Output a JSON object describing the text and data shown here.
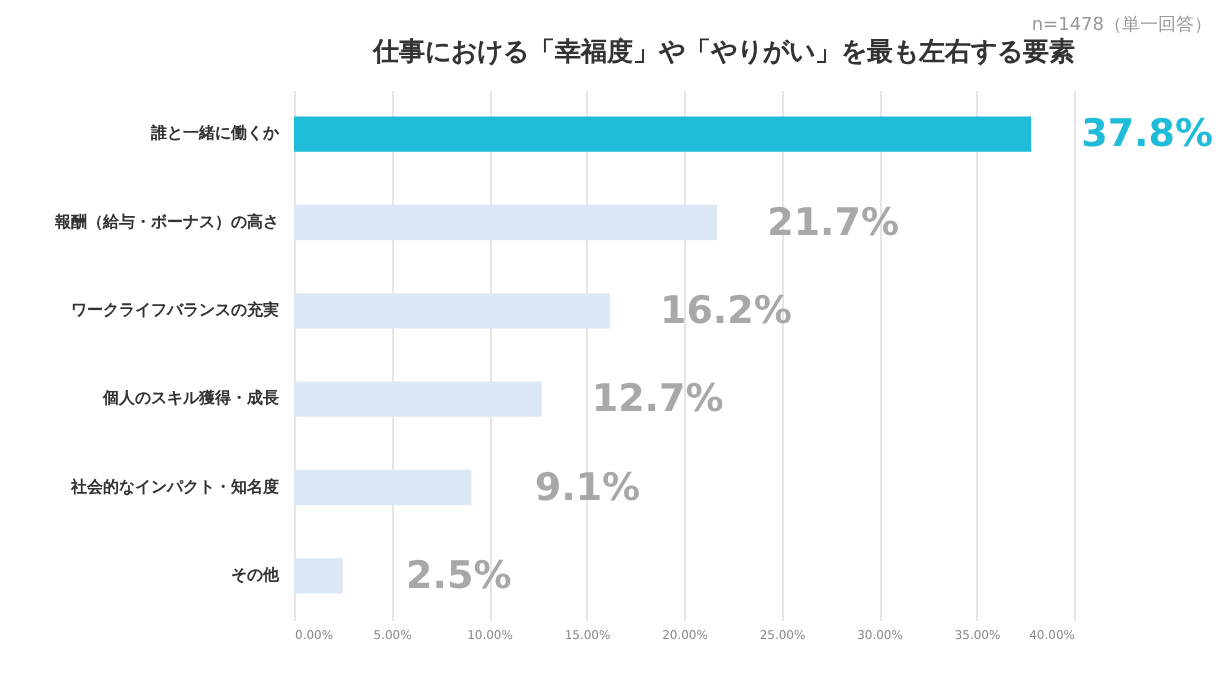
{
  "chart_data": {
    "type": "bar",
    "orientation": "horizontal",
    "title": "仕事における「幸福度」や「やりがい」を最も左右する要素",
    "subtitle": "n=1478（単一回答）",
    "categories": [
      "誰と一緒に働くか",
      "報酬（給与・ボーナス）の高さ",
      "ワークライフバランスの充実",
      "個人のスキル獲得・成長",
      "社会的なインパクト・知名度",
      "その他"
    ],
    "values": [
      37.8,
      21.7,
      16.2,
      12.7,
      9.1,
      2.5
    ],
    "value_labels": [
      "37.8%",
      "21.7%",
      "16.2%",
      "12.7%",
      "9.1%",
      "2.5%"
    ],
    "colors": [
      "#1fbcd9",
      "#dce8f5",
      "#dce8f5",
      "#dce8f5",
      "#dce8f5",
      "#dce8f5"
    ],
    "xlim": [
      0,
      40
    ],
    "xticks": [
      {
        "value": 0,
        "label": "0.00%"
      },
      {
        "value": 5,
        "label": "5.00%"
      },
      {
        "value": 10,
        "label": "10.00%"
      },
      {
        "value": 15,
        "label": "15.00%"
      },
      {
        "value": 20,
        "label": "20.00%"
      },
      {
        "value": 25,
        "label": "25.00%"
      },
      {
        "value": 30,
        "label": "30.00%"
      },
      {
        "value": 35,
        "label": "35.00%"
      },
      {
        "value": 40,
        "label": "40.00%"
      }
    ],
    "grid": "x"
  }
}
